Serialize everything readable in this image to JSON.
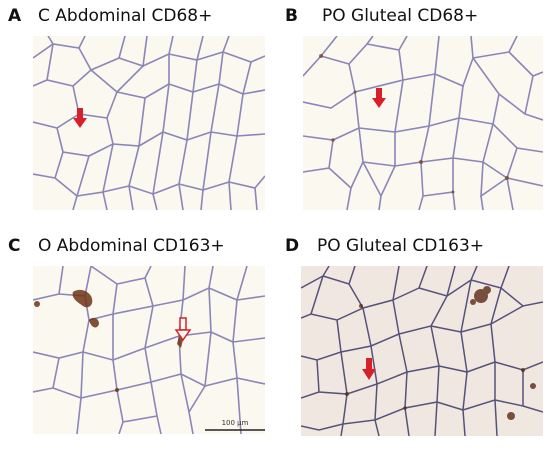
{
  "panels": [
    {
      "letter": "A",
      "title": "C Abdominal CD68+",
      "arrow": "red-arrow-down",
      "scale_bar": ""
    },
    {
      "letter": "B",
      "title": "PO Gluteal CD68+",
      "arrow": "red-arrow-down",
      "scale_bar": ""
    },
    {
      "letter": "C",
      "title": "O  Abdominal CD163+",
      "arrow": "red-outline-arrow-down",
      "scale_bar": "100 μm"
    },
    {
      "letter": "D",
      "title": "PO Gluteal CD163+",
      "arrow": "red-arrow-down",
      "scale_bar": ""
    }
  ],
  "colors": {
    "cell_interior": "#fbf8f0",
    "cell_interior_D": "#f4ece6",
    "membrane": "#8a86b8",
    "stain_brown": "#7a3a1a",
    "arrow": "#d8202a"
  }
}
